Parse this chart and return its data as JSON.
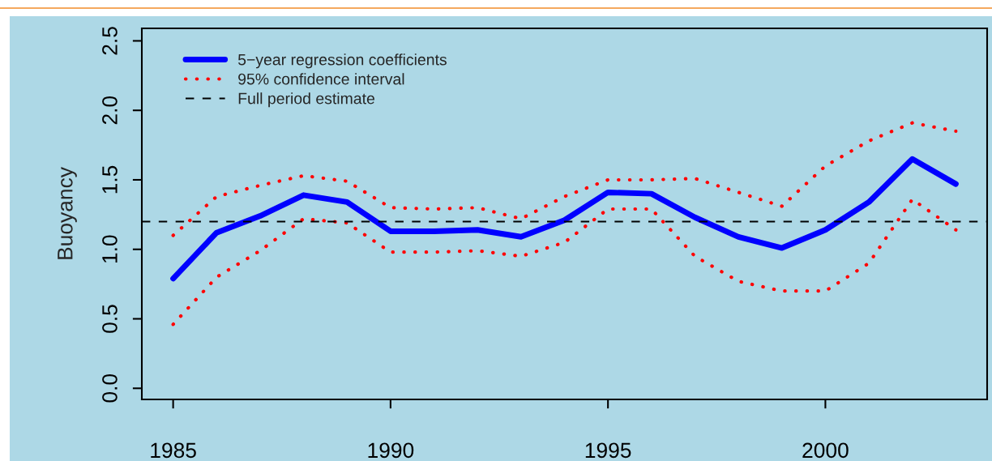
{
  "chart_data": {
    "type": "line",
    "ylabel": "Buoyancy",
    "x": [
      1985,
      1986,
      1987,
      1988,
      1989,
      1990,
      1991,
      1992,
      1993,
      1994,
      1995,
      1996,
      1997,
      1998,
      1999,
      2000,
      2001,
      2002,
      2003
    ],
    "series": [
      {
        "name": "5−year regression coefficients",
        "color": "#0000ff",
        "line_style": "solid",
        "values": [
          0.79,
          1.12,
          1.24,
          1.39,
          1.34,
          1.13,
          1.13,
          1.14,
          1.09,
          1.21,
          1.41,
          1.4,
          1.23,
          1.09,
          1.01,
          1.14,
          1.34,
          1.65,
          1.47
        ]
      },
      {
        "name": "95% confidence interval",
        "color": "#ff0000",
        "line_style": "dotted",
        "values": [
          1.1,
          1.38,
          1.46,
          1.53,
          1.49,
          1.3,
          1.29,
          1.3,
          1.22,
          1.38,
          1.5,
          1.5,
          1.51,
          1.41,
          1.31,
          1.6,
          1.78,
          1.91,
          1.85
        ]
      },
      {
        "color": "#ff0000",
        "line_style": "dotted",
        "values": [
          0.46,
          0.8,
          0.99,
          1.22,
          1.19,
          0.98,
          0.98,
          0.99,
          0.95,
          1.05,
          1.29,
          1.29,
          0.95,
          0.77,
          0.7,
          0.7,
          0.9,
          1.36,
          1.14
        ]
      }
    ],
    "ref_lines": [
      {
        "axis": "y",
        "value": 1.2,
        "label": "Full period estimate",
        "color": "#000000",
        "line_style": "dashed"
      }
    ],
    "xlim": [
      1984.28,
      2003.72
    ],
    "ylim": [
      -0.08,
      2.59
    ],
    "xticks": [
      1985,
      1990,
      1995,
      2000
    ],
    "yticks": [
      {
        "value": 0,
        "label": "0.0"
      },
      {
        "value": 0.5,
        "label": "0.5"
      },
      {
        "value": 1,
        "label": "1.0"
      },
      {
        "value": 1.5,
        "label": "1.5"
      },
      {
        "value": 2,
        "label": "2.0"
      },
      {
        "value": 2.5,
        "label": "2.5"
      }
    ],
    "grid": false,
    "legend": "top left"
  }
}
